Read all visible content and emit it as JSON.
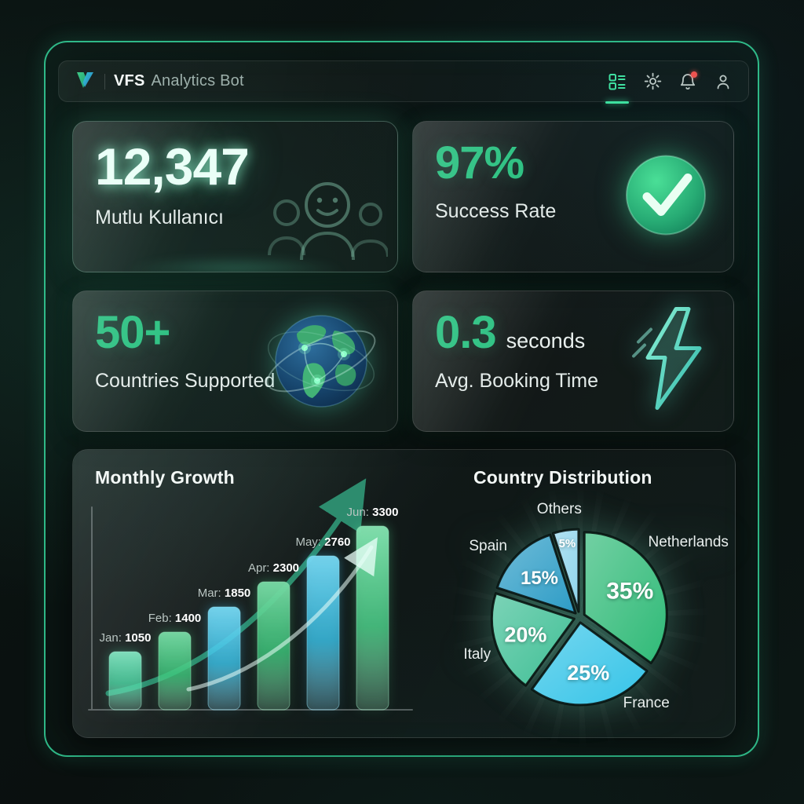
{
  "header": {
    "brand_bold": "VFS",
    "brand_rest": "Analytics Bot",
    "nav_icons": [
      "dashboard",
      "settings",
      "notifications",
      "profile"
    ],
    "active_nav": "dashboard",
    "notification_badge": true
  },
  "stats": [
    {
      "value": "12,347",
      "label": "Mutlu Kullanıcı",
      "icon": "happy-users-group"
    },
    {
      "value": "97%",
      "label": "Success Rate",
      "icon": "check-circle"
    },
    {
      "value": "50+",
      "label": "Countries Supported",
      "icon": "globe-network"
    },
    {
      "value": "0.3",
      "suffix": "seconds",
      "label": "Avg. Booking Time",
      "icon": "lightning-bolt"
    }
  ],
  "chart_data": [
    {
      "type": "bar",
      "title": "Monthly Growth",
      "categories": [
        "Jan",
        "Feb",
        "Mar",
        "Apr",
        "May",
        "Jun"
      ],
      "values": [
        1050,
        1400,
        1850,
        2300,
        2760,
        3300
      ],
      "bar_colors": [
        "#4fd6a5",
        "#3fc97e",
        "#3cc4ea",
        "#3fc97e",
        "#3cc4ea",
        "#4fd68e"
      ],
      "ylim": [
        0,
        3300
      ],
      "label_format": "{category}: {value}",
      "grid": false,
      "trend_arrows": [
        "dark-green",
        "light"
      ]
    },
    {
      "type": "pie",
      "title": "Country Distribution",
      "labels": [
        "Netherlands",
        "France",
        "Italy",
        "Spain",
        "Others"
      ],
      "values": [
        35,
        25,
        20,
        15,
        5
      ],
      "value_suffix": "%",
      "colors": [
        "#2fba77",
        "#35c4e8",
        "#3fbf95",
        "#2d9cc6",
        "#8fd4ec"
      ],
      "start_angle_deg": 0,
      "direction": "clockwise",
      "exploded": true,
      "legend_position": "around"
    }
  ],
  "colors": {
    "accent_green": "#35d49a",
    "number_green": "#2dc182",
    "badge_red": "#ef5350",
    "bar_blue": "#3cc4ea",
    "bar_green": "#3fc97e"
  }
}
